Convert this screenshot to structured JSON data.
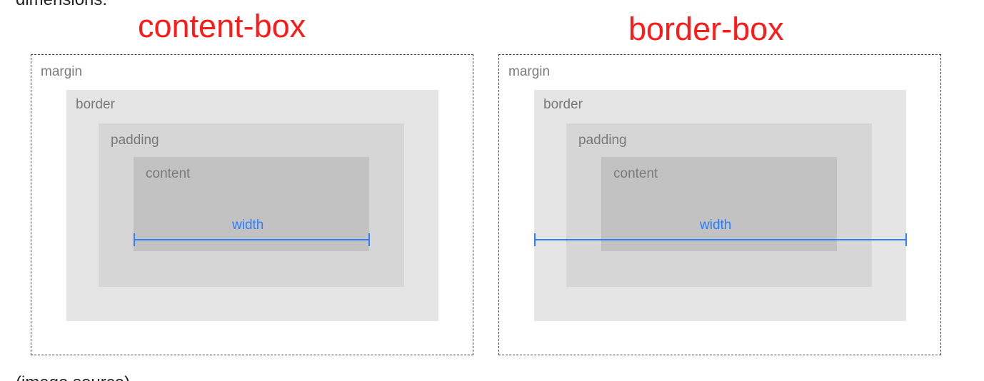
{
  "header_text": "dimensions.",
  "footer_text": "(image source)",
  "colors": {
    "title": "#ff1a1a",
    "margin_border": "#444444",
    "border_fill": "#e5e5e5",
    "padding_fill": "#d6d6d6",
    "content_fill": "#c2c2c2",
    "label": "#7a7a7a",
    "measure": "#2d7fff"
  },
  "diagrams": [
    {
      "title": "content-box",
      "margin_label": "margin",
      "border_label": "border",
      "padding_label": "padding",
      "content_label": "content",
      "width_label": "width",
      "width_spans": "content"
    },
    {
      "title": "border-box",
      "margin_label": "margin",
      "border_label": "border",
      "padding_label": "padding",
      "content_label": "content",
      "width_label": "width",
      "width_spans": "border"
    }
  ]
}
